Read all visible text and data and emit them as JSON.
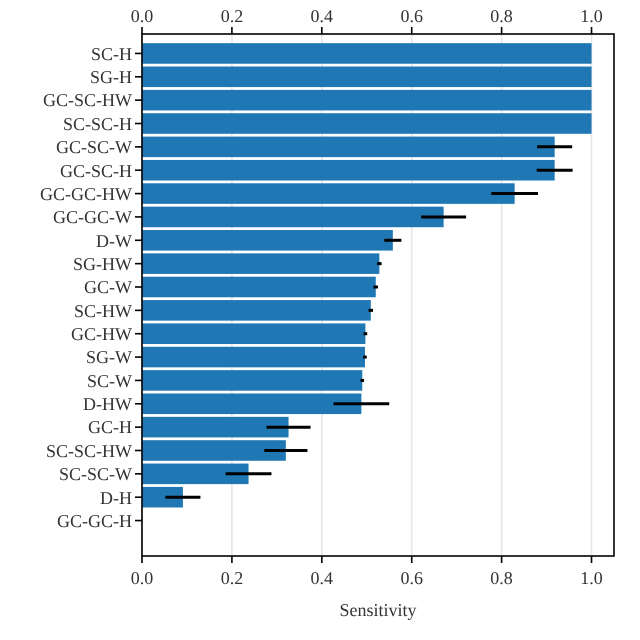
{
  "chart_data": {
    "type": "bar",
    "orientation": "horizontal",
    "xlabel": "Sensitivity",
    "categories": [
      "SC-H",
      "SG-H",
      "GC-SC-HW",
      "SC-SC-H",
      "GC-SC-W",
      "GC-SC-H",
      "GC-GC-HW",
      "GC-GC-W",
      "D-W",
      "SG-HW",
      "GC-W",
      "SC-HW",
      "GC-HW",
      "SG-W",
      "SC-W",
      "D-HW",
      "GC-H",
      "SC-SC-HW",
      "SC-SC-W",
      "D-H",
      "GC-GC-H"
    ],
    "values": [
      1,
      1,
      1,
      1,
      0.918,
      0.918,
      0.829,
      0.671,
      0.558,
      0.528,
      0.52,
      0.509,
      0.497,
      0.496,
      0.49,
      0.488,
      0.326,
      0.32,
      0.237,
      0.091,
      0
    ],
    "errors": [
      null,
      null,
      null,
      null,
      0.039,
      0.04,
      0.052,
      0.05,
      0.019,
      0.005,
      0.005,
      0.005,
      0.004,
      0.004,
      0.004,
      0.062,
      0.049,
      0.048,
      0.051,
      0.039,
      null
    ],
    "color": "#1f77b4",
    "xlim": [
      0,
      1.05
    ],
    "xticks": [
      {
        "value": 0,
        "label": "0.0"
      },
      0.2,
      0.4,
      0.6,
      0.8,
      {
        "value": 1,
        "label": "1.0"
      }
    ],
    "x2lim": [
      0,
      1.05
    ],
    "x2ticks": [
      {
        "value": 0,
        "label": "0.0"
      },
      0.2,
      0.4,
      0.6,
      0.8,
      {
        "value": 1,
        "label": "1.0"
      }
    ],
    "grid": "x"
  }
}
